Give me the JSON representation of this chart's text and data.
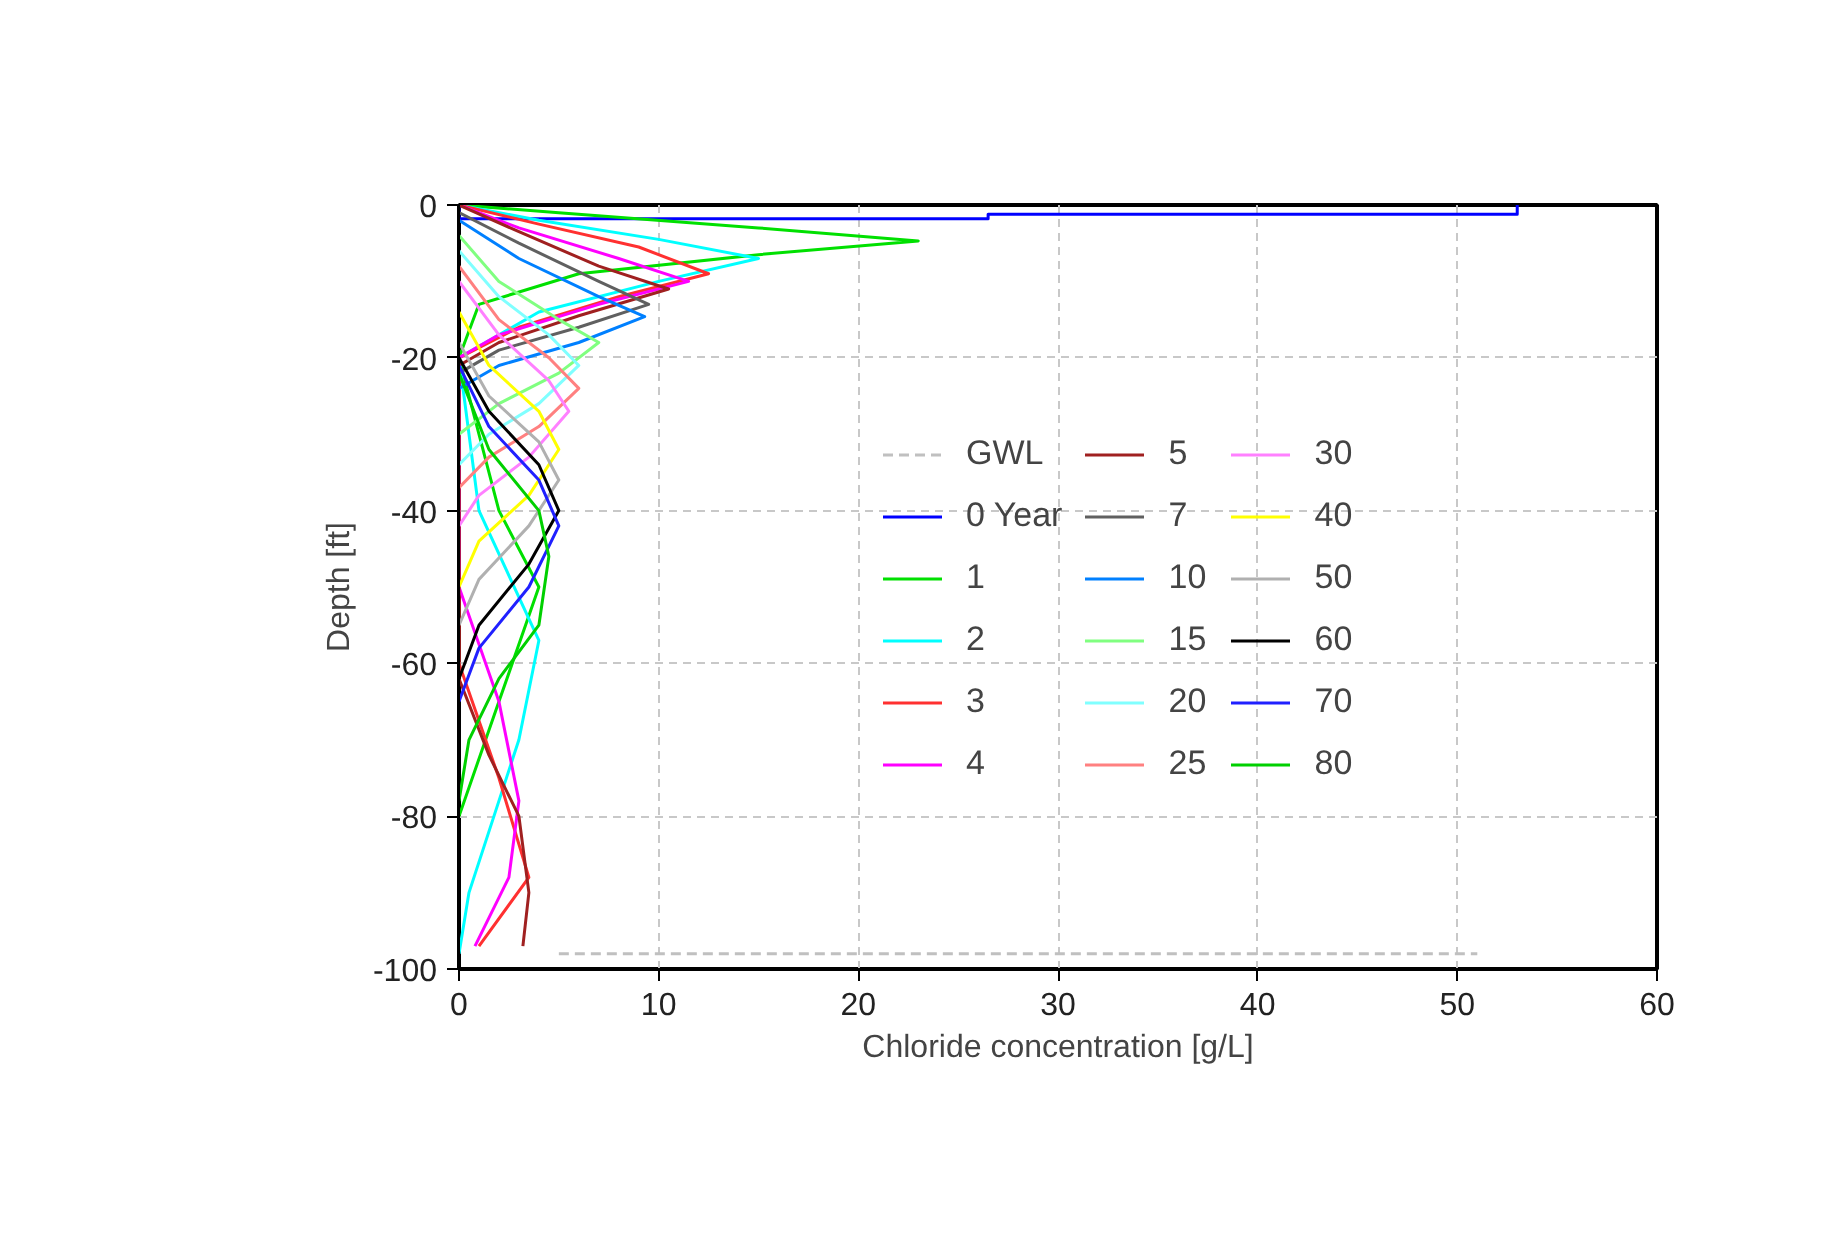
{
  "chart_data": {
    "type": "line",
    "xlabel": "Chloride concentration [g/L]",
    "ylabel": "Depth [ft]",
    "xlim": [
      0,
      60
    ],
    "ylim": [
      -100,
      0
    ],
    "xticks": [
      0,
      10,
      20,
      30,
      40,
      50,
      60
    ],
    "yticks": [
      -100,
      -80,
      -60,
      -40,
      -20,
      0
    ],
    "grid": true,
    "legend": "center right",
    "marker": "none",
    "line_style": "solid",
    "series": [
      {
        "name": "GWL",
        "color": "#c0c0c0",
        "line_style": "dashed",
        "x": [
          5,
          51
        ],
        "values": [
          -98,
          -98
        ]
      },
      {
        "name": "0 Year",
        "color": "#0000ff",
        "x": [
          0,
          0,
          26.5,
          26.5,
          53,
          53
        ],
        "values": [
          0,
          -1.8,
          -1.8,
          -1.2,
          -1.2,
          0
        ]
      },
      {
        "name": "1",
        "color": "#00e000",
        "x": [
          0,
          5,
          15,
          23,
          15,
          6,
          1,
          0,
          2,
          4,
          2,
          0
        ],
        "values": [
          0,
          -1,
          -3,
          -4.7,
          -6.5,
          -9,
          -13,
          -20,
          -40,
          -50,
          -65,
          -80
        ]
      },
      {
        "name": "2",
        "color": "#00ffff",
        "x": [
          0,
          4,
          10,
          15,
          10,
          4,
          0,
          1,
          4,
          3,
          0.5,
          0
        ],
        "values": [
          0,
          -2,
          -4.5,
          -7,
          -10,
          -14,
          -20,
          -40,
          -57,
          -70,
          -90,
          -98
        ]
      },
      {
        "name": "3",
        "color": "#ff3030",
        "x": [
          0,
          4,
          9,
          12.5,
          8,
          3,
          0,
          0,
          2,
          3.5,
          1
        ],
        "values": [
          0,
          -2.5,
          -5.5,
          -9,
          -12,
          -16,
          -20,
          -60,
          -75,
          -88,
          -97
        ]
      },
      {
        "name": "4",
        "color": "#ff00ff",
        "x": [
          0,
          3,
          8,
          11.5,
          7,
          2,
          0,
          0,
          2,
          3,
          2.5,
          0.8
        ],
        "values": [
          0,
          -3,
          -7,
          -10,
          -13,
          -17,
          -20,
          -50,
          -65,
          -78,
          -88,
          -97
        ]
      },
      {
        "name": "5",
        "color": "#a02020",
        "x": [
          0,
          3,
          7,
          10.5,
          6,
          2,
          0,
          0,
          1.5,
          3,
          3.5,
          3.2
        ],
        "values": [
          0,
          -3.5,
          -8,
          -11,
          -14.5,
          -18,
          -21,
          -62,
          -72,
          -80,
          -90,
          -97
        ]
      },
      {
        "name": "7",
        "color": "#606060",
        "x": [
          0,
          3,
          7,
          9.5,
          6,
          2,
          0
        ],
        "values": [
          -1,
          -5,
          -10,
          -13,
          -16,
          -19,
          -22
        ]
      },
      {
        "name": "10",
        "color": "#0080ff",
        "x": [
          0,
          3,
          7,
          9.3,
          6,
          2,
          0
        ],
        "values": [
          -2,
          -7,
          -12,
          -14.6,
          -18,
          -21,
          -24
        ]
      },
      {
        "name": "15",
        "color": "#80ff80",
        "x": [
          0,
          2,
          5,
          7,
          5,
          2,
          0
        ],
        "values": [
          -4,
          -10,
          -15,
          -18,
          -22,
          -26,
          -30
        ]
      },
      {
        "name": "20",
        "color": "#80ffff",
        "x": [
          0,
          2,
          4.5,
          6,
          4,
          1.5,
          0
        ],
        "values": [
          -6,
          -12,
          -17,
          -21,
          -26,
          -30,
          -34
        ]
      },
      {
        "name": "25",
        "color": "#ff8080",
        "x": [
          0,
          2,
          4.5,
          6,
          4,
          1.5,
          0
        ],
        "values": [
          -8,
          -15,
          -20,
          -24,
          -29,
          -33,
          -37
        ]
      },
      {
        "name": "30",
        "color": "#ff80ff",
        "x": [
          0,
          2,
          4.5,
          5.5,
          3.5,
          1,
          0
        ],
        "values": [
          -10,
          -17,
          -23,
          -27,
          -33,
          -38,
          -42
        ]
      },
      {
        "name": "40",
        "color": "#ffff00",
        "x": [
          0,
          1.5,
          4,
          5,
          3.5,
          1,
          0
        ],
        "values": [
          -14,
          -21,
          -27,
          -32,
          -38,
          -44,
          -50
        ]
      },
      {
        "name": "50",
        "color": "#b0b0b0",
        "x": [
          0,
          1.5,
          4,
          5,
          3.5,
          1,
          0
        ],
        "values": [
          -18,
          -25,
          -31,
          -36,
          -42,
          -49,
          -55
        ]
      },
      {
        "name": "60",
        "color": "#000000",
        "x": [
          0,
          1.5,
          4,
          5,
          3.5,
          1,
          0
        ],
        "values": [
          -20,
          -27,
          -34,
          -40,
          -47,
          -55,
          -62
        ]
      },
      {
        "name": "70",
        "color": "#2020ff",
        "x": [
          0,
          1.5,
          4,
          5,
          3.5,
          1,
          0
        ],
        "values": [
          -21,
          -29,
          -36,
          -42,
          -50,
          -58,
          -65
        ]
      },
      {
        "name": "80",
        "color": "#00d000",
        "x": [
          0,
          1.5,
          4,
          4.5,
          4,
          2,
          0.5,
          0
        ],
        "values": [
          -22,
          -32,
          -40,
          -46,
          -55,
          -62,
          -70,
          -78
        ]
      }
    ]
  }
}
